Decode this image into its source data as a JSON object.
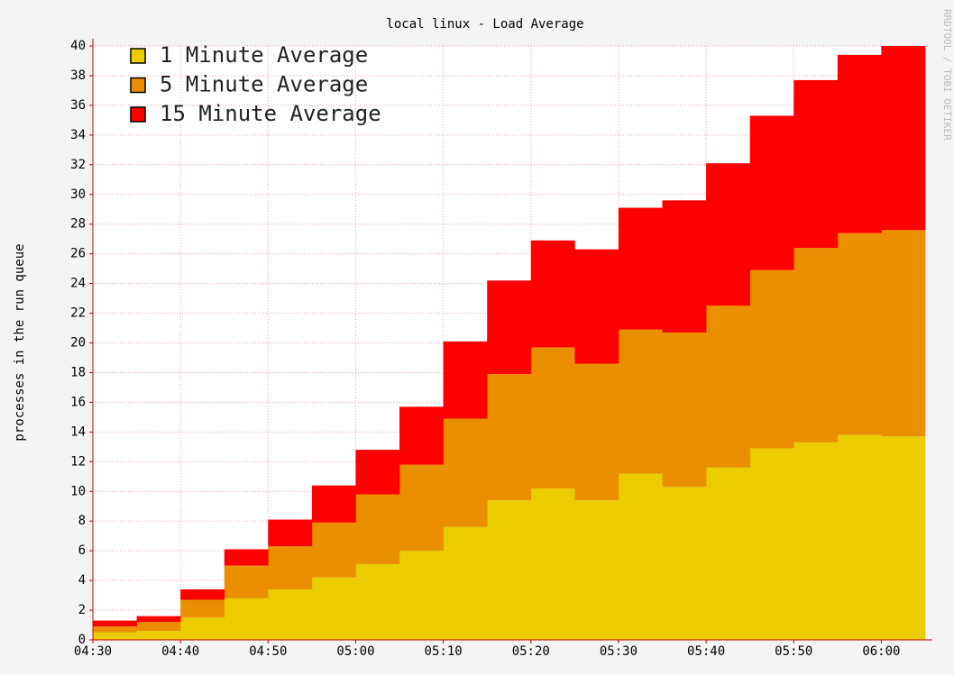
{
  "chart_data": {
    "type": "stacked-step-area",
    "title": "local linux - Load Average",
    "y_label": "processes in the run queue",
    "watermark": "RRDTOOL / TOBI OETIKER",
    "x": [
      "04:30",
      "04:35",
      "04:40",
      "04:45",
      "04:50",
      "04:55",
      "05:00",
      "05:05",
      "05:10",
      "05:15",
      "05:20",
      "05:25",
      "05:30",
      "05:35",
      "05:40",
      "05:45",
      "05:50",
      "05:55",
      "06:00"
    ],
    "xlim": [
      "04:30",
      "06:05"
    ],
    "xticks": [
      "04:30",
      "04:40",
      "04:50",
      "05:00",
      "05:10",
      "05:20",
      "05:30",
      "05:40",
      "05:50",
      "06:00"
    ],
    "ylim": [
      0,
      40
    ],
    "yticks": [
      0,
      2,
      4,
      6,
      8,
      10,
      12,
      14,
      16,
      18,
      20,
      22,
      24,
      26,
      28,
      30,
      32,
      34,
      36,
      38,
      40
    ],
    "grid": true,
    "legend": "top-left",
    "series": [
      {
        "name": "1 Minute Average",
        "color": "#eacc00",
        "values": [
          0.5,
          0.6,
          1.5,
          2.8,
          3.4,
          4.2,
          5.1,
          6.0,
          7.6,
          9.4,
          10.2,
          9.4,
          11.2,
          10.3,
          11.6,
          12.9,
          13.3,
          13.8,
          13.7
        ]
      },
      {
        "name": "5 Minute Average",
        "color": "#ea8f00",
        "values": [
          0.4,
          0.6,
          1.2,
          2.2,
          2.9,
          3.7,
          4.7,
          5.8,
          7.3,
          8.5,
          9.5,
          9.2,
          9.7,
          10.4,
          10.9,
          12.0,
          13.1,
          13.6,
          13.9
        ]
      },
      {
        "name": "15 Minute Average",
        "color": "#ff0000",
        "values": [
          0.4,
          0.4,
          0.7,
          1.1,
          1.8,
          2.5,
          3.0,
          3.9,
          5.2,
          6.3,
          7.2,
          7.7,
          8.2,
          8.9,
          9.6,
          10.4,
          11.3,
          12.0,
          12.4
        ]
      }
    ]
  }
}
